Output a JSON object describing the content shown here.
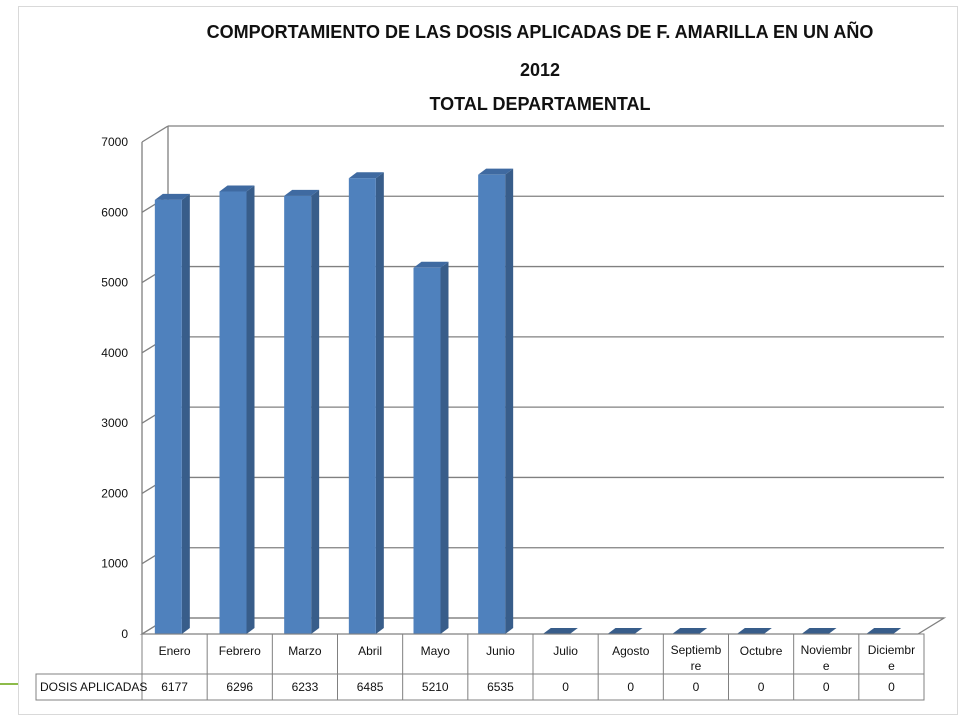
{
  "chart_data": {
    "type": "bar",
    "title": [
      "COMPORTAMIENTO  DE LAS DOSIS APLICADAS DE F. AMARILLA EN UN AÑO",
      "2012",
      "TOTAL DEPARTAMENTAL"
    ],
    "xlabel": "",
    "ylabel": "",
    "categories": [
      "Enero",
      "Febrero",
      "Marzo",
      "Abril",
      "Mayo",
      "Junio",
      "Julio",
      "Agosto",
      "Septiembre",
      "Octubre",
      "Noviembre",
      "Diciembre"
    ],
    "category_display": [
      [
        "Enero"
      ],
      [
        "Febrero"
      ],
      [
        "Marzo"
      ],
      [
        "Abril"
      ],
      [
        "Mayo"
      ],
      [
        "Junio"
      ],
      [
        "Julio"
      ],
      [
        "Agosto"
      ],
      [
        "Septiemb",
        "re"
      ],
      [
        "Octubre"
      ],
      [
        "Noviembr",
        "e"
      ],
      [
        "Diciembr",
        "e"
      ]
    ],
    "series": [
      {
        "name": "DOSIS APLICADAS",
        "values": [
          6177,
          6296,
          6233,
          6485,
          5210,
          6535,
          0,
          0,
          0,
          0,
          0,
          0
        ]
      }
    ],
    "ylim": [
      0,
      7000
    ],
    "yticks": [
      0,
      1000,
      2000,
      3000,
      4000,
      5000,
      6000,
      7000
    ],
    "grid": true,
    "legend": "data-table",
    "colors": {
      "bar_front": "#4f81bd",
      "bar_side": "#385d8a",
      "bar_top": "#3f6aa1",
      "grid": "#808080"
    }
  }
}
